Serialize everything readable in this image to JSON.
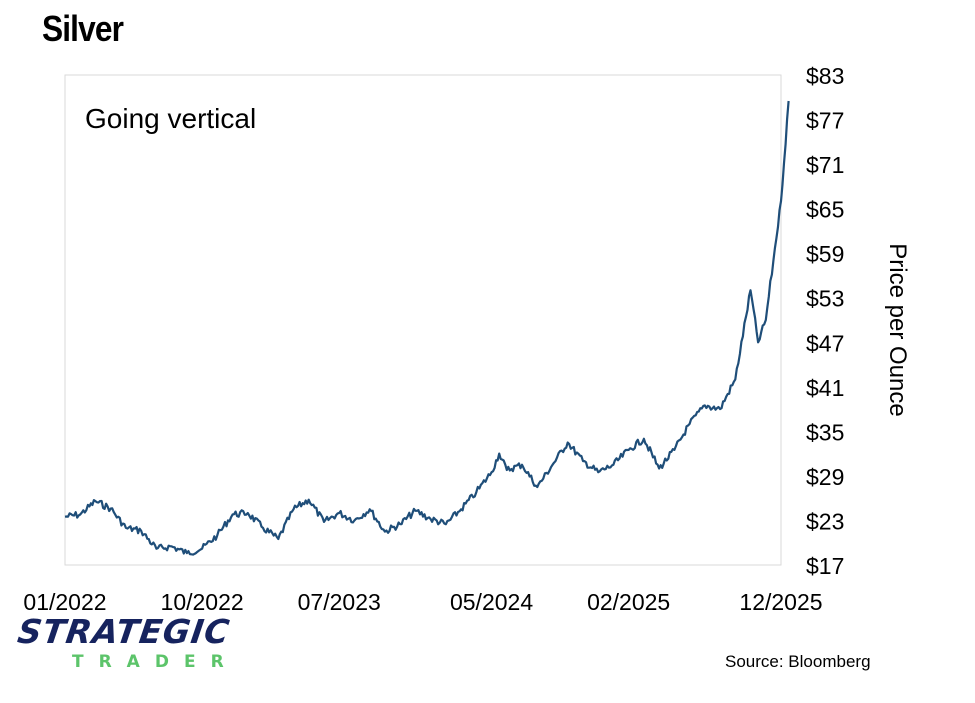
{
  "title": "Silver",
  "source": "Source: Bloomberg",
  "brand": {
    "name": "STRATEGIC",
    "sub": "TRADER"
  },
  "colors": {
    "line": "#1f4e79",
    "frame": "#d9d9d9",
    "brand_name": "#16235e",
    "brand_sub": "#5cc46a"
  },
  "chart_data": {
    "type": "line",
    "annotation": "Going vertical",
    "ylabel": "Price per Ounce",
    "y_axis_side": "right",
    "ylim": [
      17,
      83
    ],
    "yticks": [
      "$17",
      "$23",
      "$29",
      "$35",
      "$41",
      "$47",
      "$53",
      "$59",
      "$65",
      "$71",
      "$77",
      "$83"
    ],
    "xticks": [
      "01/2022",
      "10/2022",
      "07/2023",
      "05/2024",
      "02/2025",
      "12/2025"
    ],
    "grid": false,
    "series": [
      {
        "values": [
          [
            "01/2022",
            23.5
          ],
          [
            "02/2022",
            23.8
          ],
          [
            "03/2022",
            25.6
          ],
          [
            "04/2022",
            24.6
          ],
          [
            "05/2022",
            22.0
          ],
          [
            "06/2022",
            21.6
          ],
          [
            "07/2022",
            19.2
          ],
          [
            "08/2022",
            19.5
          ],
          [
            "09/2022",
            18.6
          ],
          [
            "10/2022",
            19.2
          ],
          [
            "11/2022",
            21.0
          ],
          [
            "12/2022",
            23.8
          ],
          [
            "01/2023",
            24.0
          ],
          [
            "02/2023",
            22.0
          ],
          [
            "03/2023",
            20.5
          ],
          [
            "04/2023",
            24.5
          ],
          [
            "05/2023",
            25.8
          ],
          [
            "06/2023",
            22.8
          ],
          [
            "07/2023",
            24.0
          ],
          [
            "08/2023",
            23.0
          ],
          [
            "09/2023",
            24.5
          ],
          [
            "10/2023",
            21.5
          ],
          [
            "11/2023",
            22.5
          ],
          [
            "12/2023",
            24.3
          ],
          [
            "01/2024",
            23.2
          ],
          [
            "02/2024",
            22.5
          ],
          [
            "03/2024",
            24.5
          ],
          [
            "04/2024",
            26.8
          ],
          [
            "05/2024",
            29.5
          ],
          [
            "05/2024",
            32.0
          ],
          [
            "06/2024",
            29.8
          ],
          [
            "07/2024",
            30.5
          ],
          [
            "08/2024",
            27.5
          ],
          [
            "09/2024",
            30.5
          ],
          [
            "10/2024",
            33.5
          ],
          [
            "11/2024",
            31.0
          ],
          [
            "12/2024",
            29.5
          ],
          [
            "01/2025",
            30.5
          ],
          [
            "02/2025",
            32.5
          ],
          [
            "03/2025",
            34.0
          ],
          [
            "04/2025",
            30.0
          ],
          [
            "05/2025",
            32.5
          ],
          [
            "06/2025",
            36.0
          ],
          [
            "07/2025",
            38.5
          ],
          [
            "08/2025",
            38.0
          ],
          [
            "09/2025",
            42.0
          ],
          [
            "10/2025",
            54.0
          ],
          [
            "10/2025",
            47.0
          ],
          [
            "11/2025",
            50.0
          ],
          [
            "11/2025",
            58.0
          ],
          [
            "12/2025",
            66.0
          ],
          [
            "12/2025",
            79.5
          ]
        ]
      }
    ]
  }
}
